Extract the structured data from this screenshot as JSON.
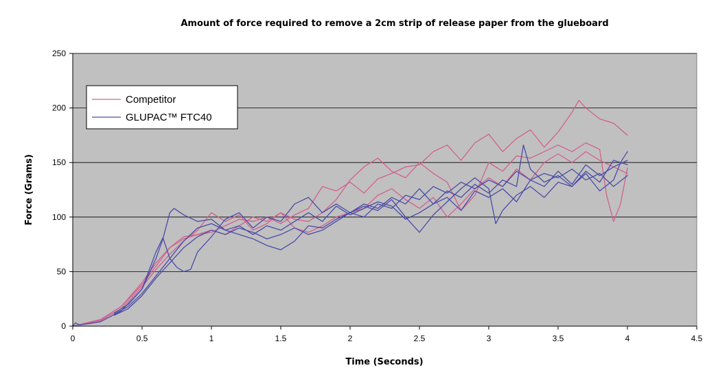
{
  "chart_data": {
    "type": "line",
    "title": "Amount of force required to remove a 2cm strip of release paper from the glueboard",
    "xlabel": "Time (Seconds)",
    "ylabel": "Force (Grams)",
    "xlim": [
      0,
      4.5
    ],
    "ylim": [
      0,
      250
    ],
    "x_ticks": [
      "0",
      "0.5",
      "1",
      "1.5",
      "2",
      "2.5",
      "3",
      "3.5",
      "4",
      "4.5"
    ],
    "y_ticks": [
      "0",
      "50",
      "100",
      "150",
      "200",
      "250"
    ],
    "grid": "horizontal",
    "legend_position": "top-left",
    "colors": {
      "plot_background": "#c0c0c0",
      "competitor": "#d0608c",
      "glupac": "#4a4aa8",
      "gridline": "#000000"
    },
    "legend": [
      {
        "label": "Competitor",
        "color": "#d0608c"
      },
      {
        "label": "GLUPAC™ FTC40",
        "color": "#4a4aa8"
      }
    ],
    "series": [
      {
        "group": "Competitor",
        "color": "#d0608c",
        "points": [
          [
            0.0,
            0
          ],
          [
            0.2,
            6
          ],
          [
            0.35,
            18
          ],
          [
            0.5,
            38
          ],
          [
            0.6,
            55
          ],
          [
            0.7,
            72
          ],
          [
            0.8,
            82
          ],
          [
            0.9,
            84
          ],
          [
            1.0,
            86
          ],
          [
            1.1,
            92
          ],
          [
            1.2,
            98
          ],
          [
            1.3,
            96
          ],
          [
            1.4,
            100
          ],
          [
            1.5,
            94
          ],
          [
            1.6,
            102
          ],
          [
            1.7,
            108
          ],
          [
            1.8,
            128
          ],
          [
            1.9,
            124
          ],
          [
            2.0,
            132
          ],
          [
            2.1,
            122
          ],
          [
            2.2,
            135
          ],
          [
            2.3,
            140
          ],
          [
            2.4,
            146
          ],
          [
            2.5,
            148
          ],
          [
            2.6,
            160
          ],
          [
            2.7,
            166
          ],
          [
            2.8,
            152
          ],
          [
            2.9,
            168
          ],
          [
            3.0,
            176
          ],
          [
            3.1,
            160
          ],
          [
            3.2,
            172
          ],
          [
            3.3,
            180
          ],
          [
            3.4,
            164
          ],
          [
            3.5,
            178
          ],
          [
            3.6,
            196
          ],
          [
            3.65,
            207
          ],
          [
            3.7,
            200
          ],
          [
            3.8,
            190
          ],
          [
            3.9,
            186
          ],
          [
            4.0,
            175
          ]
        ]
      },
      {
        "group": "Competitor",
        "color": "#d0608c",
        "points": [
          [
            0.0,
            0
          ],
          [
            0.2,
            5
          ],
          [
            0.35,
            16
          ],
          [
            0.5,
            36
          ],
          [
            0.6,
            52
          ],
          [
            0.7,
            66
          ],
          [
            0.8,
            78
          ],
          [
            0.9,
            88
          ],
          [
            1.0,
            104
          ],
          [
            1.1,
            96
          ],
          [
            1.2,
            102
          ],
          [
            1.3,
            88
          ],
          [
            1.4,
            94
          ],
          [
            1.5,
            104
          ],
          [
            1.6,
            98
          ],
          [
            1.7,
            96
          ],
          [
            1.8,
            104
          ],
          [
            1.9,
            116
          ],
          [
            2.0,
            134
          ],
          [
            2.1,
            146
          ],
          [
            2.2,
            154
          ],
          [
            2.3,
            142
          ],
          [
            2.4,
            136
          ],
          [
            2.5,
            150
          ],
          [
            2.6,
            140
          ],
          [
            2.7,
            132
          ],
          [
            2.8,
            106
          ],
          [
            2.9,
            120
          ],
          [
            3.0,
            150
          ],
          [
            3.1,
            142
          ],
          [
            3.2,
            156
          ],
          [
            3.3,
            154
          ],
          [
            3.4,
            160
          ],
          [
            3.5,
            166
          ],
          [
            3.6,
            160
          ],
          [
            3.7,
            168
          ],
          [
            3.8,
            162
          ],
          [
            3.85,
            120
          ],
          [
            3.9,
            96
          ],
          [
            3.95,
            112
          ],
          [
            4.0,
            145
          ]
        ]
      },
      {
        "group": "Competitor",
        "color": "#d0608c",
        "points": [
          [
            0.0,
            0
          ],
          [
            0.2,
            6
          ],
          [
            0.35,
            18
          ],
          [
            0.5,
            40
          ],
          [
            0.6,
            58
          ],
          [
            0.7,
            72
          ],
          [
            0.8,
            80
          ],
          [
            0.9,
            84
          ],
          [
            1.0,
            88
          ],
          [
            1.1,
            84
          ],
          [
            1.2,
            92
          ],
          [
            1.3,
            100
          ],
          [
            1.4,
            96
          ],
          [
            1.5,
            104
          ],
          [
            1.6,
            90
          ],
          [
            1.7,
            86
          ],
          [
            1.8,
            92
          ],
          [
            1.9,
            100
          ],
          [
            2.0,
            104
          ],
          [
            2.1,
            108
          ],
          [
            2.2,
            120
          ],
          [
            2.3,
            126
          ],
          [
            2.4,
            116
          ],
          [
            2.5,
            108
          ],
          [
            2.6,
            118
          ],
          [
            2.7,
            100
          ],
          [
            2.8,
            112
          ],
          [
            2.9,
            126
          ],
          [
            3.0,
            136
          ],
          [
            3.1,
            128
          ],
          [
            3.2,
            144
          ],
          [
            3.3,
            134
          ],
          [
            3.4,
            150
          ],
          [
            3.5,
            158
          ],
          [
            3.6,
            150
          ],
          [
            3.7,
            160
          ],
          [
            3.8,
            152
          ],
          [
            3.9,
            146
          ],
          [
            4.0,
            140
          ]
        ]
      },
      {
        "group": "GLUPAC™ FTC40",
        "color": "#4a4aa8",
        "points": [
          [
            0.0,
            0
          ],
          [
            0.02,
            3
          ],
          [
            0.05,
            1
          ],
          [
            0.2,
            4
          ],
          [
            0.35,
            14
          ],
          [
            0.5,
            34
          ],
          [
            0.6,
            68
          ],
          [
            0.65,
            81
          ],
          [
            0.7,
            62
          ],
          [
            0.75,
            54
          ],
          [
            0.8,
            50
          ],
          [
            0.85,
            52
          ],
          [
            0.9,
            68
          ],
          [
            1.0,
            82
          ],
          [
            1.1,
            98
          ],
          [
            1.2,
            104
          ],
          [
            1.3,
            90
          ],
          [
            1.4,
            100
          ],
          [
            1.5,
            96
          ],
          [
            1.6,
            112
          ],
          [
            1.7,
            118
          ],
          [
            1.8,
            104
          ],
          [
            1.9,
            112
          ],
          [
            2.0,
            104
          ],
          [
            2.1,
            100
          ],
          [
            2.2,
            112
          ],
          [
            2.3,
            108
          ],
          [
            2.4,
            120
          ],
          [
            2.5,
            116
          ],
          [
            2.6,
            128
          ],
          [
            2.7,
            122
          ],
          [
            2.8,
            132
          ],
          [
            2.9,
            126
          ],
          [
            3.0,
            134
          ],
          [
            3.1,
            128
          ],
          [
            3.2,
            142
          ],
          [
            3.3,
            134
          ],
          [
            3.4,
            140
          ],
          [
            3.5,
            136
          ],
          [
            3.6,
            144
          ],
          [
            3.7,
            134
          ],
          [
            3.8,
            140
          ],
          [
            3.9,
            128
          ],
          [
            4.0,
            138
          ]
        ]
      },
      {
        "group": "GLUPAC™ FTC40",
        "color": "#4a4aa8",
        "points": [
          [
            0.3,
            12
          ],
          [
            0.4,
            20
          ],
          [
            0.5,
            34
          ],
          [
            0.6,
            62
          ],
          [
            0.65,
            80
          ],
          [
            0.7,
            104
          ],
          [
            0.73,
            108
          ],
          [
            0.8,
            102
          ],
          [
            0.9,
            96
          ],
          [
            1.0,
            98
          ],
          [
            1.1,
            88
          ],
          [
            1.2,
            92
          ],
          [
            1.3,
            84
          ],
          [
            1.4,
            92
          ],
          [
            1.5,
            88
          ],
          [
            1.6,
            96
          ],
          [
            1.7,
            104
          ],
          [
            1.8,
            96
          ],
          [
            1.9,
            110
          ],
          [
            2.0,
            102
          ],
          [
            2.1,
            108
          ],
          [
            2.2,
            114
          ],
          [
            2.3,
            110
          ],
          [
            2.4,
            98
          ],
          [
            2.5,
            104
          ],
          [
            2.6,
            112
          ],
          [
            2.7,
            124
          ],
          [
            2.8,
            118
          ],
          [
            2.9,
            130
          ],
          [
            3.0,
            122
          ],
          [
            3.1,
            134
          ],
          [
            3.2,
            128
          ],
          [
            3.25,
            166
          ],
          [
            3.3,
            144
          ],
          [
            3.4,
            132
          ],
          [
            3.5,
            138
          ],
          [
            3.6,
            128
          ],
          [
            3.7,
            142
          ],
          [
            3.8,
            132
          ],
          [
            3.9,
            152
          ],
          [
            4.0,
            148
          ]
        ]
      },
      {
        "group": "GLUPAC™ FTC40",
        "color": "#4a4aa8",
        "points": [
          [
            0.3,
            11
          ],
          [
            0.4,
            18
          ],
          [
            0.5,
            30
          ],
          [
            0.6,
            46
          ],
          [
            0.7,
            62
          ],
          [
            0.8,
            78
          ],
          [
            0.9,
            90
          ],
          [
            1.0,
            94
          ],
          [
            1.1,
            88
          ],
          [
            1.2,
            84
          ],
          [
            1.3,
            80
          ],
          [
            1.4,
            74
          ],
          [
            1.5,
            70
          ],
          [
            1.6,
            78
          ],
          [
            1.7,
            92
          ],
          [
            1.8,
            90
          ],
          [
            1.9,
            98
          ],
          [
            2.0,
            104
          ],
          [
            2.1,
            112
          ],
          [
            2.2,
            108
          ],
          [
            2.3,
            118
          ],
          [
            2.4,
            112
          ],
          [
            2.5,
            126
          ],
          [
            2.6,
            112
          ],
          [
            2.7,
            118
          ],
          [
            2.8,
            106
          ],
          [
            2.9,
            124
          ],
          [
            3.0,
            118
          ],
          [
            3.1,
            126
          ],
          [
            3.2,
            114
          ],
          [
            3.3,
            134
          ],
          [
            3.4,
            128
          ],
          [
            3.5,
            142
          ],
          [
            3.6,
            130
          ],
          [
            3.7,
            148
          ],
          [
            3.8,
            138
          ],
          [
            3.9,
            146
          ],
          [
            4.0,
            152
          ]
        ]
      },
      {
        "group": "GLUPAC™ FTC40",
        "color": "#4a4aa8",
        "points": [
          [
            0.3,
            10
          ],
          [
            0.4,
            16
          ],
          [
            0.5,
            28
          ],
          [
            0.6,
            44
          ],
          [
            0.7,
            58
          ],
          [
            0.8,
            72
          ],
          [
            0.9,
            82
          ],
          [
            1.0,
            88
          ],
          [
            1.1,
            84
          ],
          [
            1.2,
            90
          ],
          [
            1.3,
            86
          ],
          [
            1.4,
            80
          ],
          [
            1.5,
            84
          ],
          [
            1.6,
            90
          ],
          [
            1.7,
            84
          ],
          [
            1.8,
            88
          ],
          [
            1.9,
            96
          ],
          [
            2.0,
            104
          ],
          [
            2.1,
            110
          ],
          [
            2.2,
            106
          ],
          [
            2.3,
            116
          ],
          [
            2.4,
            100
          ],
          [
            2.5,
            86
          ],
          [
            2.6,
            102
          ],
          [
            2.7,
            114
          ],
          [
            2.8,
            126
          ],
          [
            2.9,
            136
          ],
          [
            3.0,
            126
          ],
          [
            3.05,
            94
          ],
          [
            3.1,
            106
          ],
          [
            3.2,
            120
          ],
          [
            3.3,
            128
          ],
          [
            3.4,
            118
          ],
          [
            3.5,
            132
          ],
          [
            3.6,
            128
          ],
          [
            3.7,
            140
          ],
          [
            3.8,
            124
          ],
          [
            3.9,
            134
          ],
          [
            3.95,
            150
          ],
          [
            4.0,
            160
          ]
        ]
      }
    ]
  }
}
